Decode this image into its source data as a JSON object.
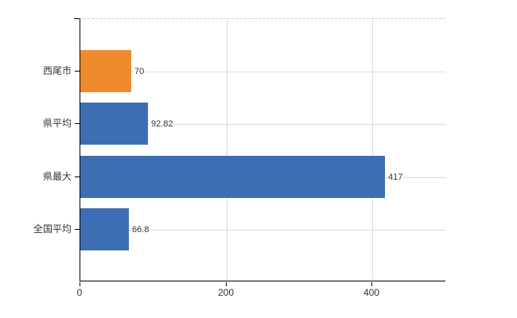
{
  "chart_data": {
    "type": "bar",
    "orientation": "horizontal",
    "title": "",
    "xlabel": "",
    "ylabel": "",
    "categories": [
      "西尾市",
      "県平均",
      "県最大",
      "全国平均"
    ],
    "values": [
      70,
      92.82,
      417,
      66.8
    ],
    "value_labels": [
      "70",
      "92.82",
      "417",
      "66.8"
    ],
    "bar_colors": [
      "#ee8b2f",
      "#3d6eb4",
      "#3d6eb4",
      "#3d6eb4"
    ],
    "x_ticks": [
      0,
      200,
      400
    ],
    "x_tick_labels": [
      "0",
      "200",
      "400"
    ],
    "xlim": [
      0,
      501
    ],
    "grid": true,
    "legend": false,
    "colors": {
      "highlight_bar": "#ee8b2f",
      "default_bar": "#3d6eb4",
      "gridline": "#d8dcd8",
      "axis": "#000000",
      "text": "#333333",
      "background": "#ffffff"
    }
  }
}
